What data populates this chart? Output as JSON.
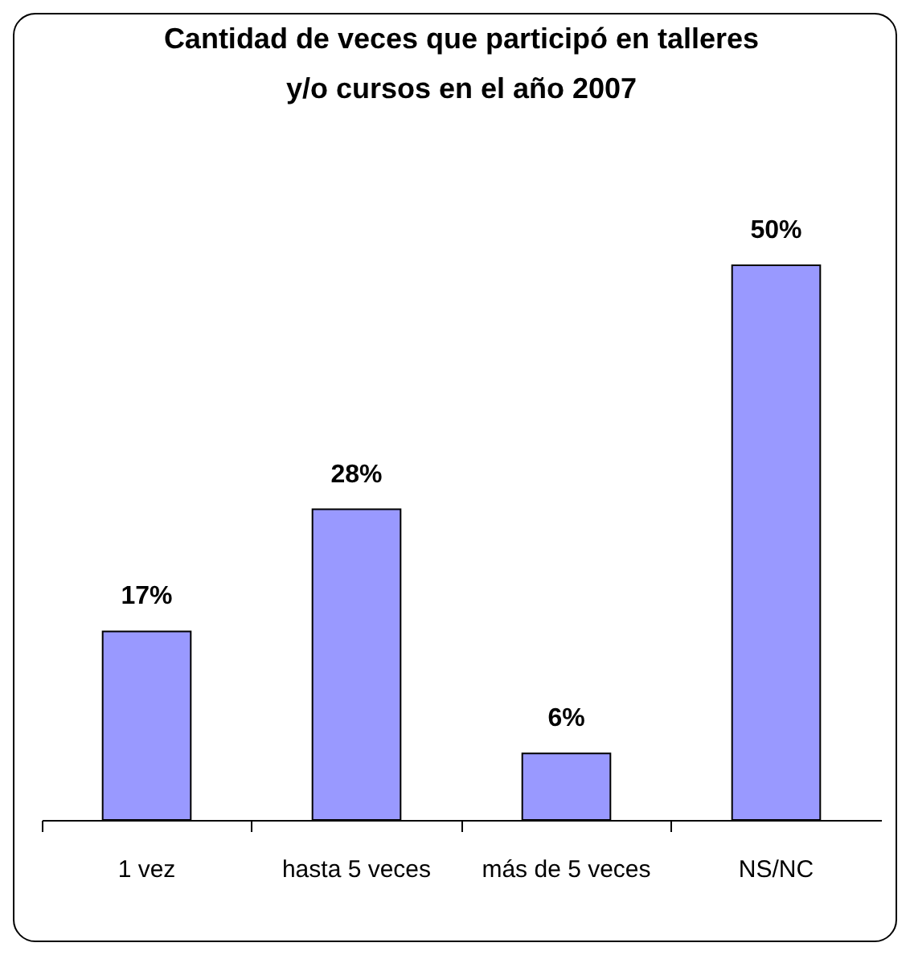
{
  "chart_data": {
    "type": "bar",
    "title": "Cantidad de veces que participó en talleres\ny/o cursos en el año 2007",
    "categories": [
      "1 vez",
      "hasta 5 veces",
      "más de 5 veces",
      "NS/NC"
    ],
    "values": [
      17,
      28,
      6,
      50
    ],
    "value_labels": [
      "17%",
      "28%",
      "6%",
      "50%"
    ],
    "color": "#9999ff"
  }
}
